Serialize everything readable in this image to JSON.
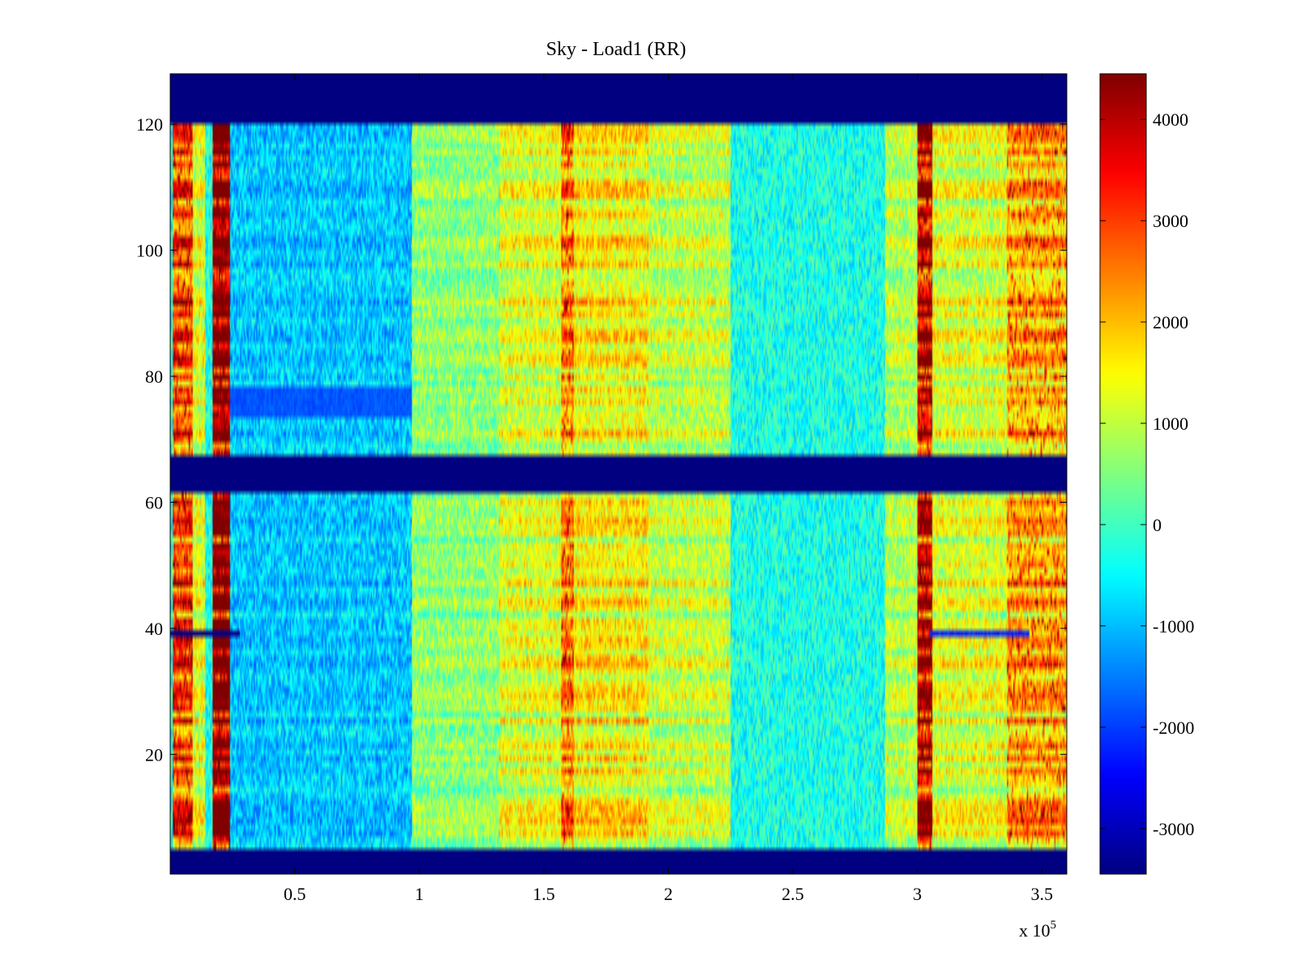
{
  "chart_data": {
    "type": "heatmap",
    "title": "Sky - Load1 (RR)",
    "xlabel": "",
    "ylabel": "",
    "x_multiplier_label": "x 10",
    "x_multiplier_exponent": "5",
    "xlim": [
      0,
      360000
    ],
    "ylim": [
      1,
      128
    ],
    "x_ticks": [
      50000,
      100000,
      150000,
      200000,
      250000,
      300000,
      350000
    ],
    "x_tick_labels": [
      "0.5",
      "1",
      "1.5",
      "2",
      "2.5",
      "3",
      "3.5"
    ],
    "y_ticks": [
      20,
      40,
      60,
      80,
      100,
      120
    ],
    "y_tick_labels": [
      "20",
      "40",
      "60",
      "80",
      "100",
      "120"
    ],
    "colormap": "jet",
    "clim": [
      -3450,
      4450
    ],
    "colorbar_ticks": [
      -3000,
      -2000,
      -1000,
      0,
      1000,
      2000,
      3000,
      4000
    ],
    "colorbar_tick_labels": [
      "-3000",
      "-2000",
      "-1000",
      "0",
      "1000",
      "2000",
      "3000",
      "4000"
    ],
    "masked_rows": [
      [
        1,
        4
      ],
      [
        62,
        67
      ],
      [
        121,
        128
      ]
    ],
    "masked_value": -3450,
    "baseline_value": -300,
    "bright_columns": [
      {
        "x_range": [
          1000,
          9000
        ],
        "value": 2800
      },
      {
        "x_range": [
          9000,
          14000
        ],
        "value": 1200
      },
      {
        "x_range": [
          17000,
          24000
        ],
        "value": 4450
      }
    ],
    "time_segments": [
      {
        "x_range": [
          24000,
          97000
        ],
        "value": -900
      },
      {
        "x_range": [
          97000,
          132000
        ],
        "value": 600
      },
      {
        "x_range": [
          132000,
          157000
        ],
        "value": 1200
      },
      {
        "x_range": [
          157000,
          162000
        ],
        "value": 2300
      },
      {
        "x_range": [
          162000,
          192000
        ],
        "value": 1500
      },
      {
        "x_range": [
          192000,
          225000
        ],
        "value": 1000
      },
      {
        "x_range": [
          225000,
          287000
        ],
        "value": -300
      },
      {
        "x_range": [
          287000,
          300000
        ],
        "value": 900
      },
      {
        "x_range": [
          300000,
          306000
        ],
        "value": 3700
      },
      {
        "x_range": [
          306000,
          336000
        ],
        "value": 1200
      },
      {
        "x_range": [
          336000,
          360000
        ],
        "value": 2000
      }
    ],
    "notable_features": [
      {
        "rows": [
          39,
          39
        ],
        "x_range": [
          0,
          28000
        ],
        "value": -3450
      },
      {
        "rows": [
          39,
          39
        ],
        "x_range": [
          305000,
          345000
        ],
        "value": -2200
      },
      {
        "rows": [
          74,
          78
        ],
        "x_range": [
          24000,
          97000
        ],
        "value": -1800
      }
    ]
  }
}
